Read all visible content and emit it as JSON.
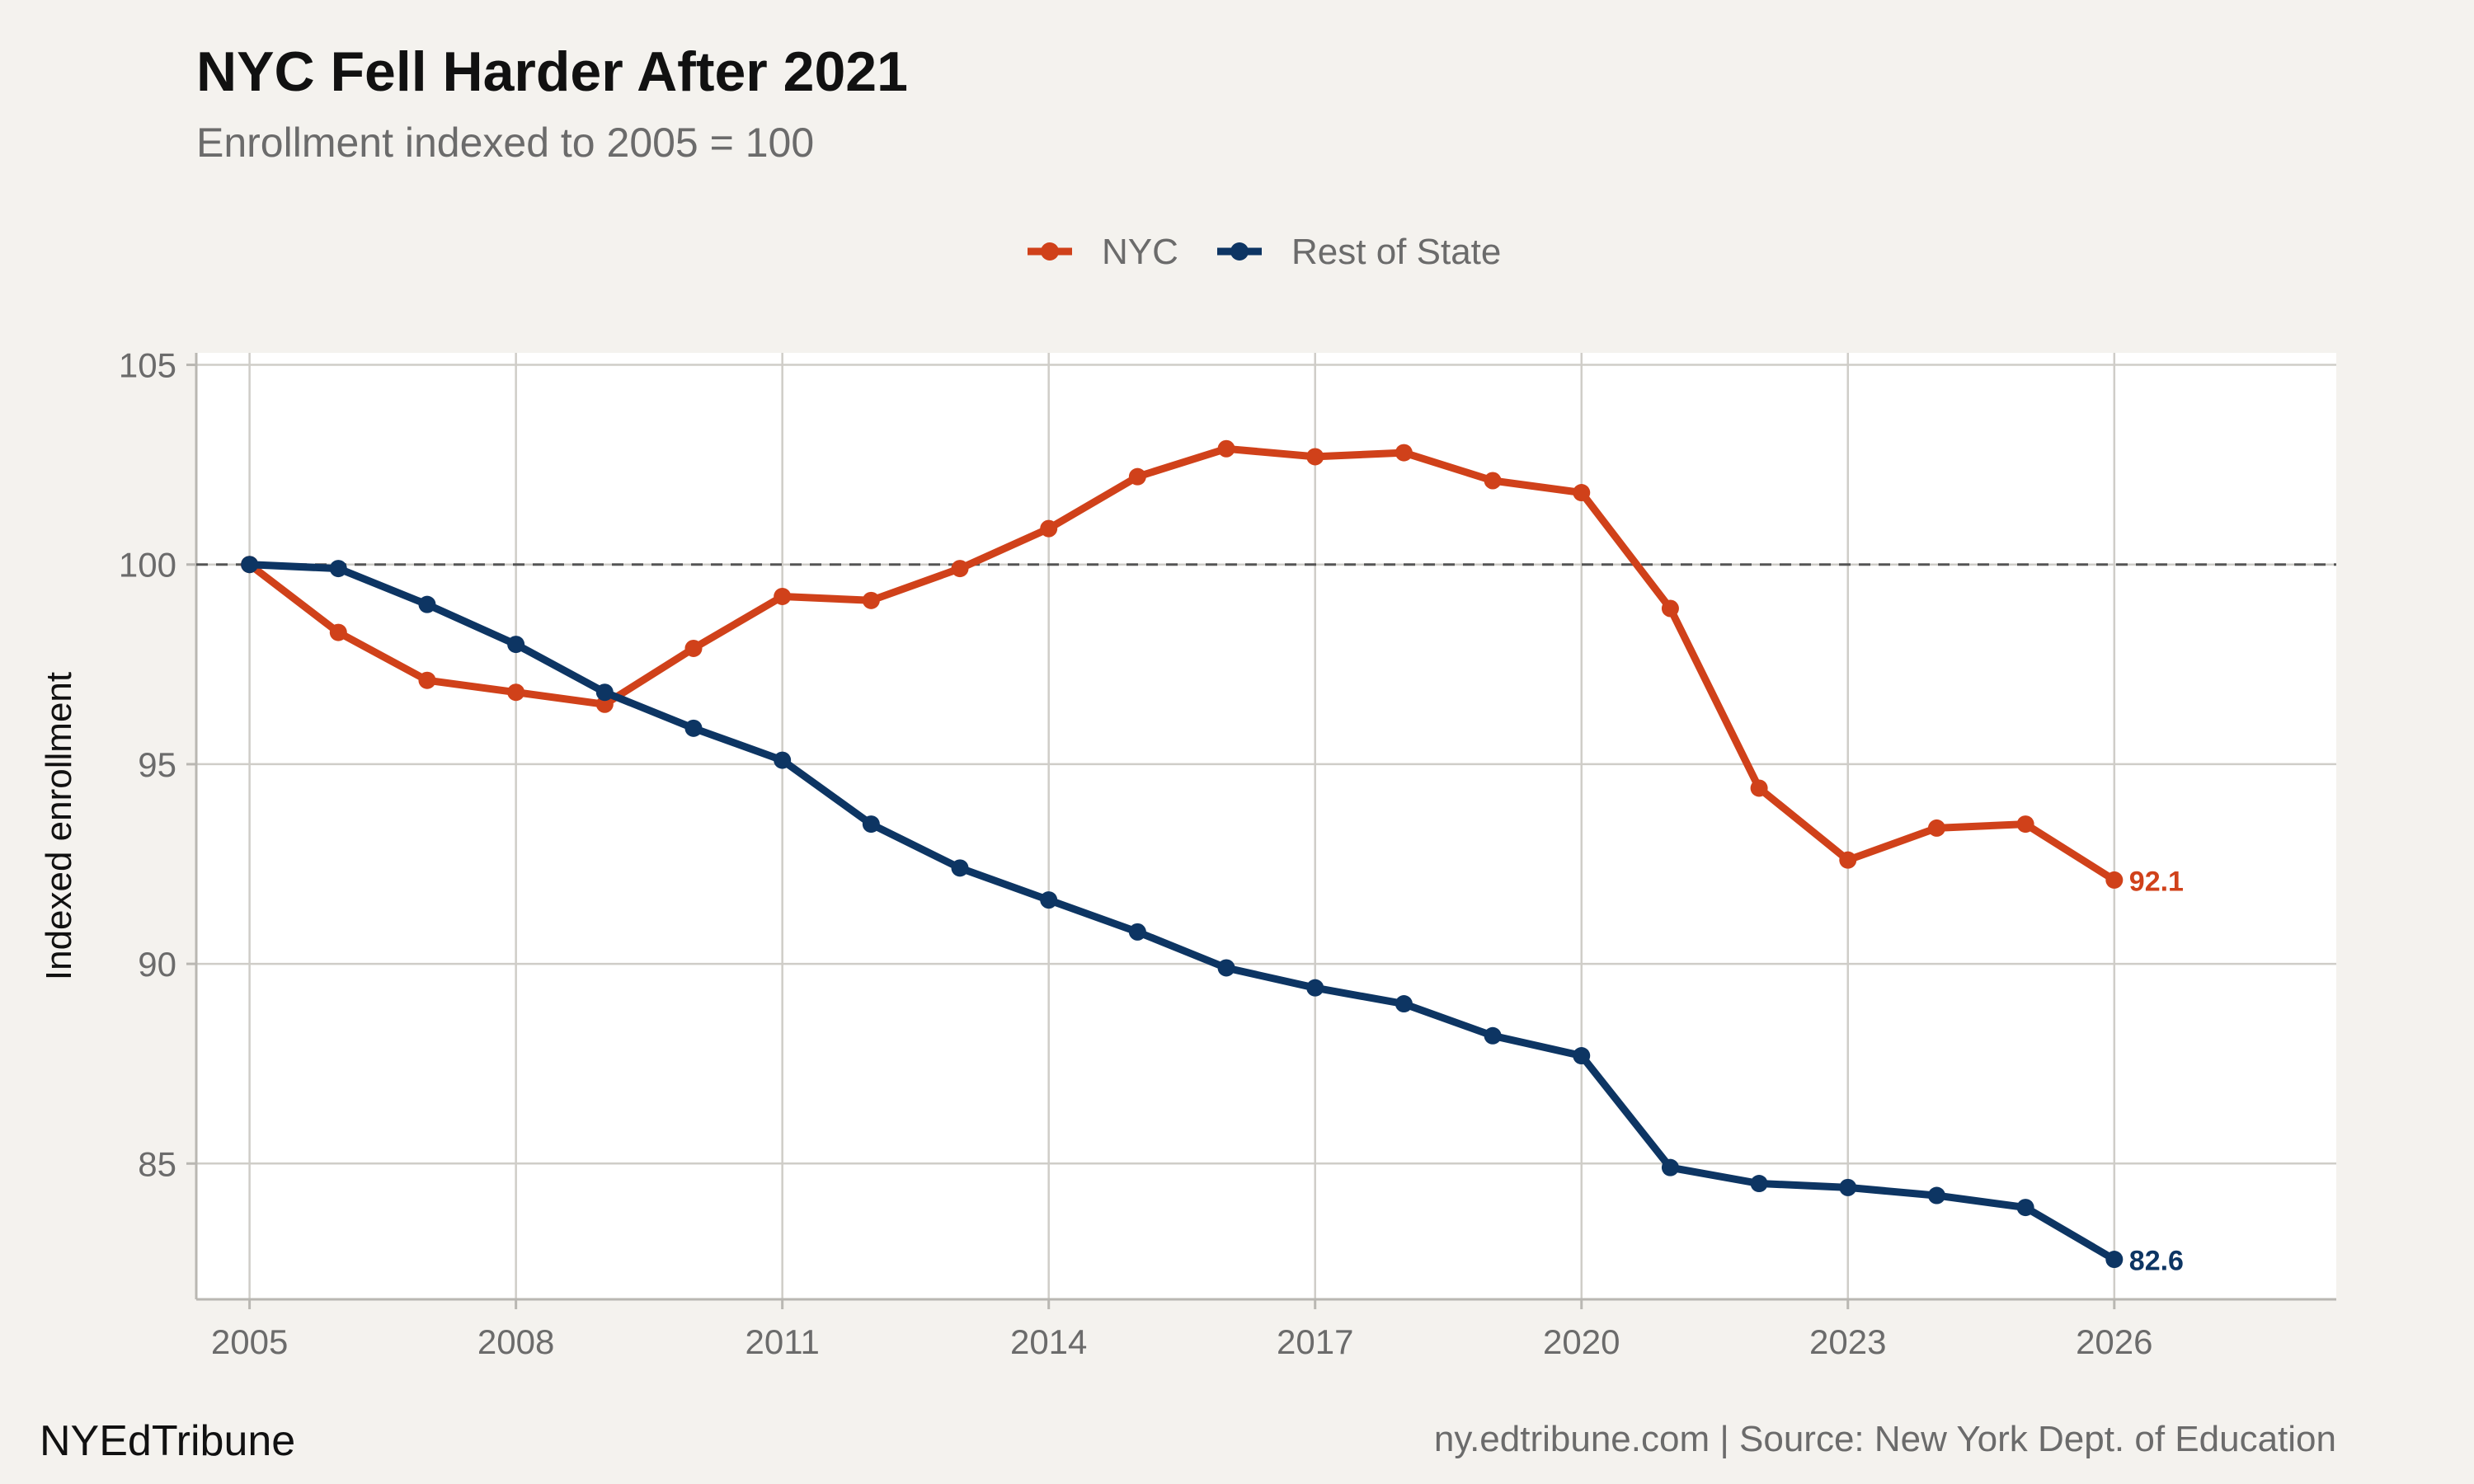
{
  "header": {
    "title": "NYC Fell Harder After 2021",
    "subtitle": "Enrollment indexed to 2005 = 100"
  },
  "footer": {
    "brand": "NYEdTribune",
    "source": "ny.edtribune.com | Source: New York Dept. of Education"
  },
  "colors": {
    "nyc": "#d0411a",
    "rest_of_state": "#0d3563"
  },
  "chart_data": {
    "type": "line",
    "title": "NYC Fell Harder After 2021",
    "subtitle": "Enrollment indexed to 2005 = 100",
    "xlabel": "",
    "ylabel": "Indexed enrollment",
    "x": [
      2005,
      2006,
      2007,
      2008,
      2009,
      2010,
      2011,
      2012,
      2013,
      2014,
      2015,
      2016,
      2017,
      2018,
      2019,
      2020,
      2021,
      2022,
      2023,
      2024,
      2025,
      2026
    ],
    "series": [
      {
        "name": "NYC",
        "color": "#d0411a",
        "values": [
          100.0,
          98.3,
          97.1,
          96.8,
          96.5,
          97.9,
          99.2,
          99.1,
          99.9,
          100.9,
          102.2,
          102.9,
          102.7,
          102.8,
          102.1,
          101.8,
          98.9,
          94.4,
          92.6,
          93.4,
          93.5,
          92.1
        ],
        "end_label": "92.1"
      },
      {
        "name": "Rest of State",
        "color": "#0d3563",
        "values": [
          100.0,
          99.9,
          99.0,
          98.0,
          96.8,
          95.9,
          95.1,
          93.5,
          92.4,
          91.6,
          90.8,
          89.9,
          89.4,
          89.0,
          88.2,
          87.7,
          84.9,
          84.5,
          84.4,
          84.2,
          83.9,
          82.6
        ],
        "end_label": "82.6"
      }
    ],
    "reference_line": 100,
    "x_ticks": [
      2005,
      2008,
      2011,
      2014,
      2017,
      2020,
      2023,
      2026
    ],
    "y_ticks": [
      85,
      90,
      95,
      100,
      105
    ],
    "xlim": [
      2004.4,
      2028.5
    ],
    "ylim": [
      81.6,
      105.3
    ],
    "legend_position": "top-center",
    "grid": true
  }
}
